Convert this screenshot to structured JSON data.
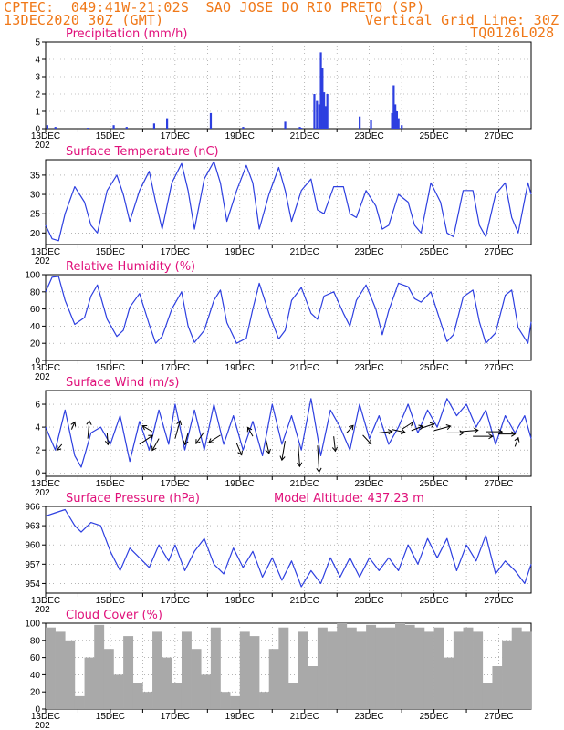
{
  "header": {
    "line1": "CPTEC:  049:41W-21:02S  SAO JOSE DO RIO PRETO (SP)",
    "line2_left": "13DEC2020 30Z (GMT)",
    "line2_right": "Vertical Grid Line: 30Z",
    "line3_right": "TQ0126L028"
  },
  "colors": {
    "header": "#f07818",
    "title": "#e0107a",
    "line": "#2d3fe0",
    "cloud": "#a9a9a9",
    "grid": "#888888"
  },
  "x_axis": {
    "labels": [
      "13DEC",
      "15DEC",
      "17DEC",
      "19DEC",
      "21DEC",
      "23DEC",
      "25DEC",
      "27DEC"
    ],
    "year_label": "202",
    "day_range": [
      13,
      28
    ]
  },
  "chart_data": [
    {
      "type": "bar",
      "title": "Precipitation (mm/h)",
      "ylim": [
        0,
        5
      ],
      "yticks": [
        "5",
        "4",
        "3",
        "2",
        "1",
        "0"
      ],
      "x": [
        13.05,
        13.3,
        14.3,
        15.1,
        15.5,
        16.35,
        16.75,
        18.1,
        19.1,
        20.4,
        20.85,
        20.9,
        21.3,
        21.38,
        21.45,
        21.5,
        21.55,
        21.6,
        21.65,
        21.7,
        22.7,
        23.05,
        23.7,
        23.75,
        23.8,
        23.85,
        23.9,
        24.0
      ],
      "values": [
        0.2,
        0.1,
        0.05,
        0.2,
        0.1,
        0.3,
        0.6,
        0.9,
        0.1,
        0.4,
        0.1,
        0.05,
        2.0,
        1.6,
        1.4,
        4.4,
        3.5,
        2.1,
        1.3,
        2.0,
        0.7,
        0.5,
        0.9,
        2.5,
        1.4,
        1.0,
        0.6,
        0.2
      ]
    },
    {
      "type": "line",
      "title": "Surface Temperature (nC)",
      "ylim": [
        17,
        39
      ],
      "yticks": [
        "35",
        "30",
        "25",
        "20"
      ],
      "x": [
        13.0,
        13.2,
        13.4,
        13.6,
        13.9,
        14.2,
        14.4,
        14.6,
        14.9,
        15.2,
        15.4,
        15.6,
        15.9,
        16.2,
        16.4,
        16.6,
        16.9,
        17.2,
        17.4,
        17.6,
        17.9,
        18.2,
        18.4,
        18.6,
        18.9,
        19.2,
        19.4,
        19.6,
        19.9,
        20.2,
        20.4,
        20.6,
        20.9,
        21.2,
        21.4,
        21.6,
        21.9,
        22.2,
        22.4,
        22.6,
        22.9,
        23.2,
        23.4,
        23.6,
        23.9,
        24.2,
        24.4,
        24.6,
        24.9,
        25.2,
        25.4,
        25.6,
        25.9,
        26.2,
        26.4,
        26.6,
        26.9,
        27.2,
        27.4,
        27.6,
        27.9,
        28.0
      ],
      "values": [
        22,
        18.5,
        18,
        25,
        32,
        28,
        22,
        20,
        31,
        35,
        30,
        23,
        31,
        36,
        28,
        21,
        33,
        38,
        31,
        21,
        34,
        38.5,
        33,
        23,
        31,
        37.5,
        33,
        21,
        30,
        37,
        31,
        23,
        31,
        34,
        26,
        25,
        32,
        32,
        25,
        24,
        31,
        27,
        21,
        22,
        30,
        28,
        22,
        20,
        33,
        28,
        20,
        19,
        31,
        31,
        22,
        19,
        30,
        33,
        24,
        20,
        33,
        30
      ]
    },
    {
      "type": "line",
      "title": "Relative Humidity (%)",
      "ylim": [
        0,
        100
      ],
      "yticks": [
        "100",
        "80",
        "60",
        "40",
        "20",
        "0"
      ],
      "x": [
        13.0,
        13.2,
        13.4,
        13.6,
        13.9,
        14.2,
        14.4,
        14.6,
        14.9,
        15.2,
        15.4,
        15.6,
        15.9,
        16.2,
        16.4,
        16.6,
        16.9,
        17.2,
        17.4,
        17.6,
        17.9,
        18.2,
        18.4,
        18.6,
        18.9,
        19.2,
        19.4,
        19.6,
        19.9,
        20.2,
        20.4,
        20.6,
        20.9,
        21.2,
        21.4,
        21.6,
        21.9,
        22.2,
        22.4,
        22.6,
        22.9,
        23.2,
        23.4,
        23.6,
        23.9,
        24.2,
        24.4,
        24.6,
        24.9,
        25.2,
        25.4,
        25.6,
        25.9,
        26.2,
        26.4,
        26.6,
        26.9,
        27.2,
        27.4,
        27.6,
        27.9,
        28.0
      ],
      "values": [
        80,
        97,
        98,
        70,
        42,
        50,
        75,
        88,
        48,
        28,
        35,
        62,
        78,
        42,
        20,
        28,
        60,
        80,
        40,
        21,
        35,
        70,
        82,
        44,
        20,
        26,
        60,
        90,
        55,
        25,
        35,
        70,
        85,
        55,
        48,
        75,
        80,
        55,
        40,
        70,
        88,
        60,
        30,
        58,
        90,
        86,
        72,
        68,
        80,
        45,
        22,
        30,
        74,
        82,
        45,
        20,
        32,
        76,
        82,
        38,
        20,
        45
      ]
    },
    {
      "type": "line",
      "title": "Surface Wind (m/s)",
      "ylim": [
        -0.3,
        7.2
      ],
      "yticks": [
        "6",
        "4",
        "2",
        "0"
      ],
      "x": [
        13.0,
        13.3,
        13.6,
        13.9,
        14.1,
        14.4,
        14.7,
        15.0,
        15.3,
        15.6,
        15.9,
        16.2,
        16.5,
        16.8,
        17.0,
        17.3,
        17.6,
        17.9,
        18.2,
        18.5,
        18.8,
        19.1,
        19.4,
        19.7,
        20.0,
        20.3,
        20.6,
        20.9,
        21.2,
        21.5,
        21.8,
        22.1,
        22.4,
        22.7,
        23.0,
        23.3,
        23.6,
        23.9,
        24.2,
        24.5,
        24.8,
        25.1,
        25.4,
        25.7,
        26.0,
        26.3,
        26.6,
        26.9,
        27.2,
        27.5,
        27.8,
        28.0
      ],
      "values": [
        4,
        2,
        5.5,
        1.5,
        0.5,
        3.5,
        4,
        2.5,
        5,
        1,
        4.5,
        2,
        5.5,
        2.5,
        6,
        2,
        5.5,
        2,
        6,
        2.5,
        5,
        2,
        4.5,
        1.5,
        6,
        2.5,
        5,
        2,
        6.5,
        1.5,
        5.5,
        4,
        2,
        6,
        3,
        5,
        2.5,
        4,
        6,
        3.5,
        5.5,
        4,
        6.5,
        5,
        6,
        4,
        5.5,
        2.5,
        5,
        3.5,
        5,
        3
      ],
      "arrows_x": [
        13.5,
        13.8,
        14.3,
        14.9,
        15.9,
        16.3,
        16.5,
        17.0,
        17.4,
        17.9,
        18.4,
        18.9,
        19.4,
        19.8,
        20.4,
        20.8,
        21.4,
        21.9,
        22.3,
        22.8,
        23.3,
        23.7,
        24.0,
        24.3,
        24.6,
        25.0,
        25.4,
        25.8,
        26.2,
        26.6,
        27.0,
        27.5
      ],
      "arrows_y": [
        2.5,
        3.8,
        3,
        3.5,
        2.5,
        3.6,
        3,
        3,
        3.5,
        3.6,
        3.3,
        2.6,
        3.2,
        3,
        2.8,
        2.5,
        2.4,
        3.2,
        3.5,
        3.3,
        3.5,
        3.8,
        3.8,
        3.7,
        3.9,
        3.7,
        3.5,
        3.6,
        3.2,
        3.6,
        3.4,
        2.3
      ],
      "arrows_u": [
        -0.3,
        0.2,
        0.1,
        0.05,
        0.8,
        -0.6,
        -0.4,
        0.3,
        -0.2,
        -0.5,
        -0.7,
        0.3,
        -0.3,
        0.2,
        -0.2,
        0.1,
        0.1,
        0.1,
        0.4,
        0.5,
        0.8,
        0.8,
        0.7,
        0.7,
        0.8,
        1.0,
        1.0,
        1.1,
        1.2,
        1.0,
        1.0,
        0.2
      ],
      "arrows_v": [
        -0.4,
        0.5,
        1.2,
        -0.8,
        0.6,
        0.4,
        -0.8,
        1.2,
        -0.8,
        -0.8,
        -0.5,
        -0.8,
        0.6,
        -1.0,
        -1.3,
        -1.5,
        -1.8,
        -1.0,
        0.5,
        -0.6,
        0.1,
        -0.2,
        0.5,
        0.3,
        0.3,
        0.3,
        0.0,
        0.1,
        0.0,
        0.0,
        0.0,
        0.6
      ]
    },
    {
      "type": "line",
      "title": "Surface Pressure (hPa)",
      "subtitle": "Model Altitude: 437.23 m",
      "ylim": [
        952.5,
        966
      ],
      "yticks": [
        "966",
        "963",
        "960",
        "957",
        "954"
      ],
      "x": [
        13.0,
        13.3,
        13.6,
        13.9,
        14.1,
        14.4,
        14.7,
        15.0,
        15.3,
        15.6,
        15.9,
        16.2,
        16.5,
        16.8,
        17.0,
        17.3,
        17.6,
        17.9,
        18.2,
        18.5,
        18.8,
        19.1,
        19.4,
        19.7,
        20.0,
        20.3,
        20.6,
        20.9,
        21.2,
        21.5,
        21.8,
        22.1,
        22.4,
        22.7,
        23.0,
        23.3,
        23.6,
        23.9,
        24.2,
        24.5,
        24.8,
        25.1,
        25.4,
        25.7,
        26.0,
        26.3,
        26.6,
        26.9,
        27.2,
        27.5,
        27.8,
        28.0
      ],
      "values": [
        964.5,
        965,
        965.5,
        963,
        962,
        963.5,
        963,
        959,
        956,
        959.5,
        958,
        956.5,
        960,
        957.5,
        960,
        956,
        959,
        961,
        957,
        955.5,
        959.5,
        956.5,
        959,
        955,
        958,
        954.5,
        957.5,
        953.5,
        956,
        954,
        958,
        955,
        958,
        955,
        958,
        956,
        958,
        956,
        960,
        957,
        961,
        958,
        961,
        956,
        960,
        957.5,
        961.5,
        955.5,
        957.5,
        956,
        954,
        957
      ]
    },
    {
      "type": "bar",
      "title": "Cloud Cover (%)",
      "ylim": [
        0,
        100
      ],
      "yticks": [
        "100",
        "80",
        "60",
        "40",
        "20",
        "0"
      ],
      "x": [
        13.0,
        13.3,
        13.6,
        13.9,
        14.2,
        14.5,
        14.8,
        15.1,
        15.4,
        15.7,
        16.0,
        16.3,
        16.6,
        16.9,
        17.2,
        17.5,
        17.8,
        18.1,
        18.4,
        18.7,
        19.0,
        19.3,
        19.6,
        19.9,
        20.2,
        20.5,
        20.8,
        21.1,
        21.4,
        21.7,
        22.0,
        22.3,
        22.6,
        22.9,
        23.2,
        23.5,
        23.8,
        24.1,
        24.4,
        24.7,
        25.0,
        25.3,
        25.6,
        25.9,
        26.2,
        26.5,
        26.8,
        27.1,
        27.4,
        27.7,
        28.0
      ],
      "values": [
        95,
        90,
        80,
        15,
        60,
        98,
        70,
        40,
        85,
        30,
        20,
        90,
        60,
        30,
        90,
        70,
        40,
        95,
        20,
        15,
        90,
        85,
        20,
        70,
        95,
        30,
        90,
        50,
        95,
        90,
        100,
        95,
        90,
        98,
        95,
        95,
        100,
        98,
        95,
        90,
        95,
        60,
        90,
        95,
        90,
        30,
        50,
        80,
        95,
        90,
        100
      ]
    }
  ]
}
